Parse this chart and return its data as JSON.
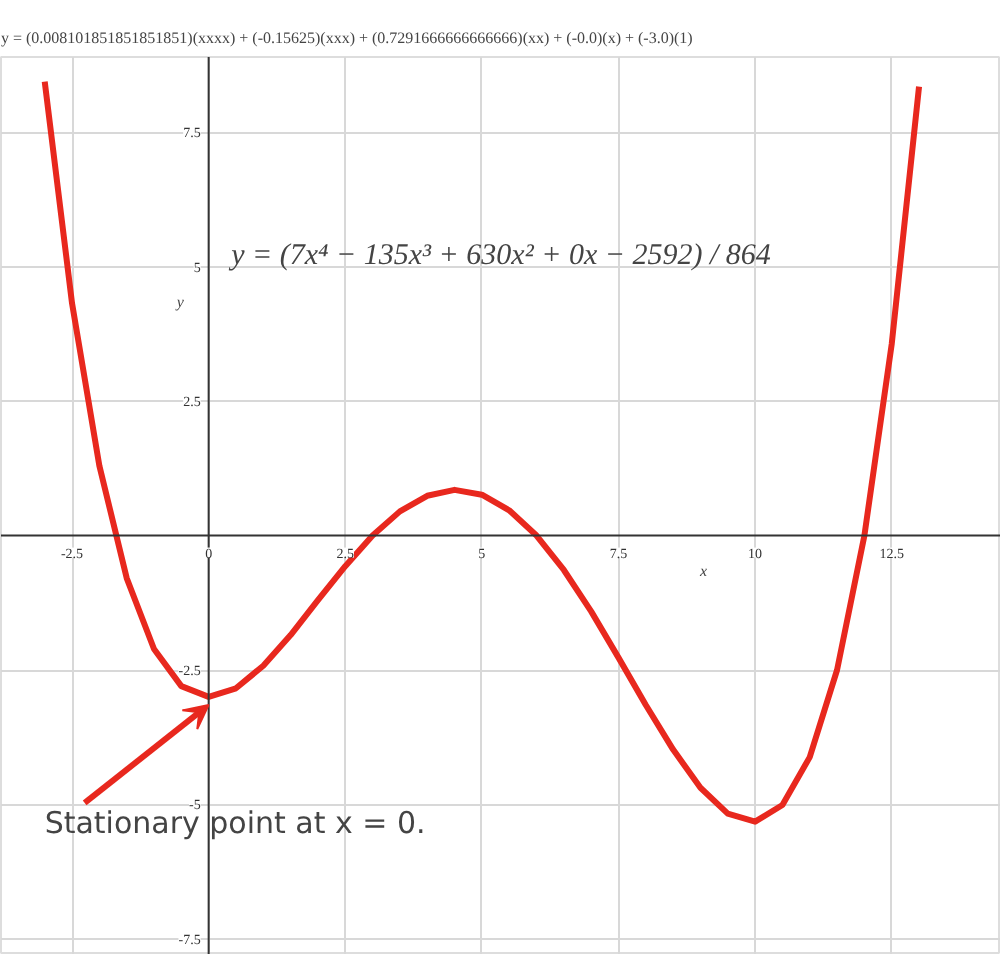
{
  "chart_data": {
    "type": "line",
    "title": "y = (0.008101851851851851)(xxxx) + (-0.15625)(xxx) + (0.7291666666666666)(xx) + (-0.0)(x) + (-3.0)(1)",
    "xlabel": "x",
    "ylabel": "y",
    "x": [
      -3,
      -2.5,
      -2,
      -1.5,
      -1,
      -0.5,
      0,
      0.5,
      1,
      1.5,
      2,
      2.5,
      3,
      3.5,
      4,
      4.5,
      5,
      5.5,
      6,
      6.5,
      7,
      7.5,
      8,
      8.5,
      9,
      9.5,
      10,
      10.5,
      11,
      11.5,
      12,
      12.5,
      13
    ],
    "series": [
      {
        "color": "#e8281e",
        "values": [
          8.44,
          4.32,
          1.3,
          -0.79,
          -2.11,
          -2.8,
          -3.0,
          -2.84,
          -2.42,
          -1.85,
          -1.2,
          -0.57,
          0,
          0.45,
          0.74,
          0.85,
          0.76,
          0.47,
          0,
          -0.64,
          -1.41,
          -2.27,
          -3.15,
          -3.98,
          -4.69,
          -5.17,
          -5.32,
          -5.01,
          -4.12,
          -2.5,
          0,
          3.56,
          8.35
        ]
      }
    ],
    "xlim": [
      -3.8,
      14.5
    ],
    "ylim": [
      -7.8,
      8.9
    ],
    "xticks": [
      -2.5,
      0,
      2.5,
      5,
      7.5,
      10,
      12.5
    ],
    "yticks": [
      -7.5,
      -5,
      -2.5,
      2.5,
      5,
      7.5
    ],
    "grid": true,
    "marker": "none",
    "line_style": "solid",
    "annotations": [
      "y = (7x⁴ − 135x³ + 630x² + 0x − 2592) / 864",
      {
        "text": "Stationary point at x = 0.",
        "x": 0,
        "y": -3
      }
    ]
  }
}
